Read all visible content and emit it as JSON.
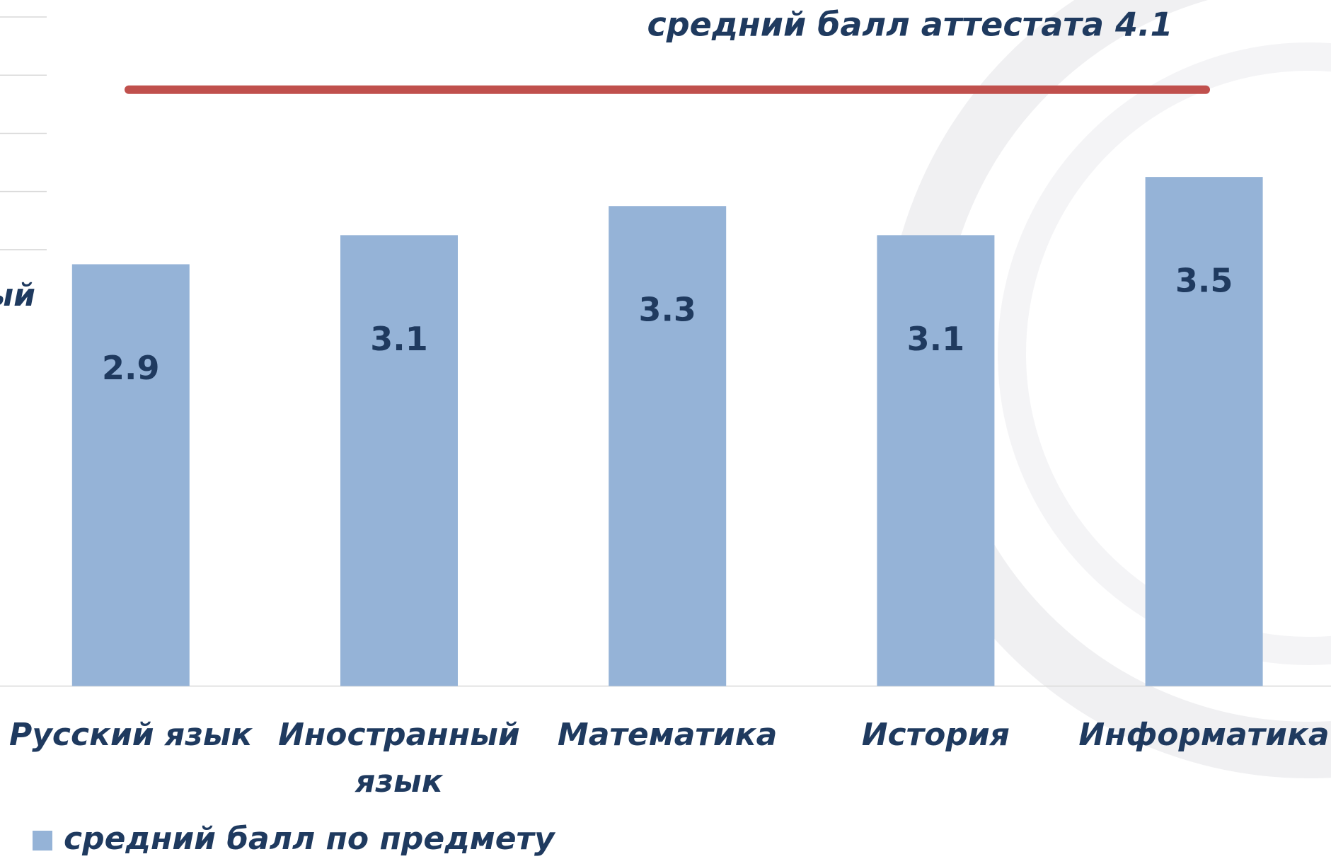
{
  "chart_data": {
    "type": "bar",
    "categories": [
      "Русский язык",
      "Иностранный язык",
      "Математика",
      "История",
      "Информатика"
    ],
    "series": [
      {
        "name": "средний балл по предмету",
        "color": "#95b3d7",
        "values": [
          2.9,
          3.1,
          3.3,
          3.1,
          3.5
        ]
      }
    ],
    "reference_line": {
      "value": 4.1,
      "label": "средний балл аттестата 4.1",
      "color": "#c0504d"
    },
    "partial_label": "ый",
    "ylim": [
      0,
      4.6
    ],
    "gridlines": [
      3.0,
      3.4,
      3.8,
      4.2,
      4.6
    ],
    "legend": "bottom-left"
  }
}
